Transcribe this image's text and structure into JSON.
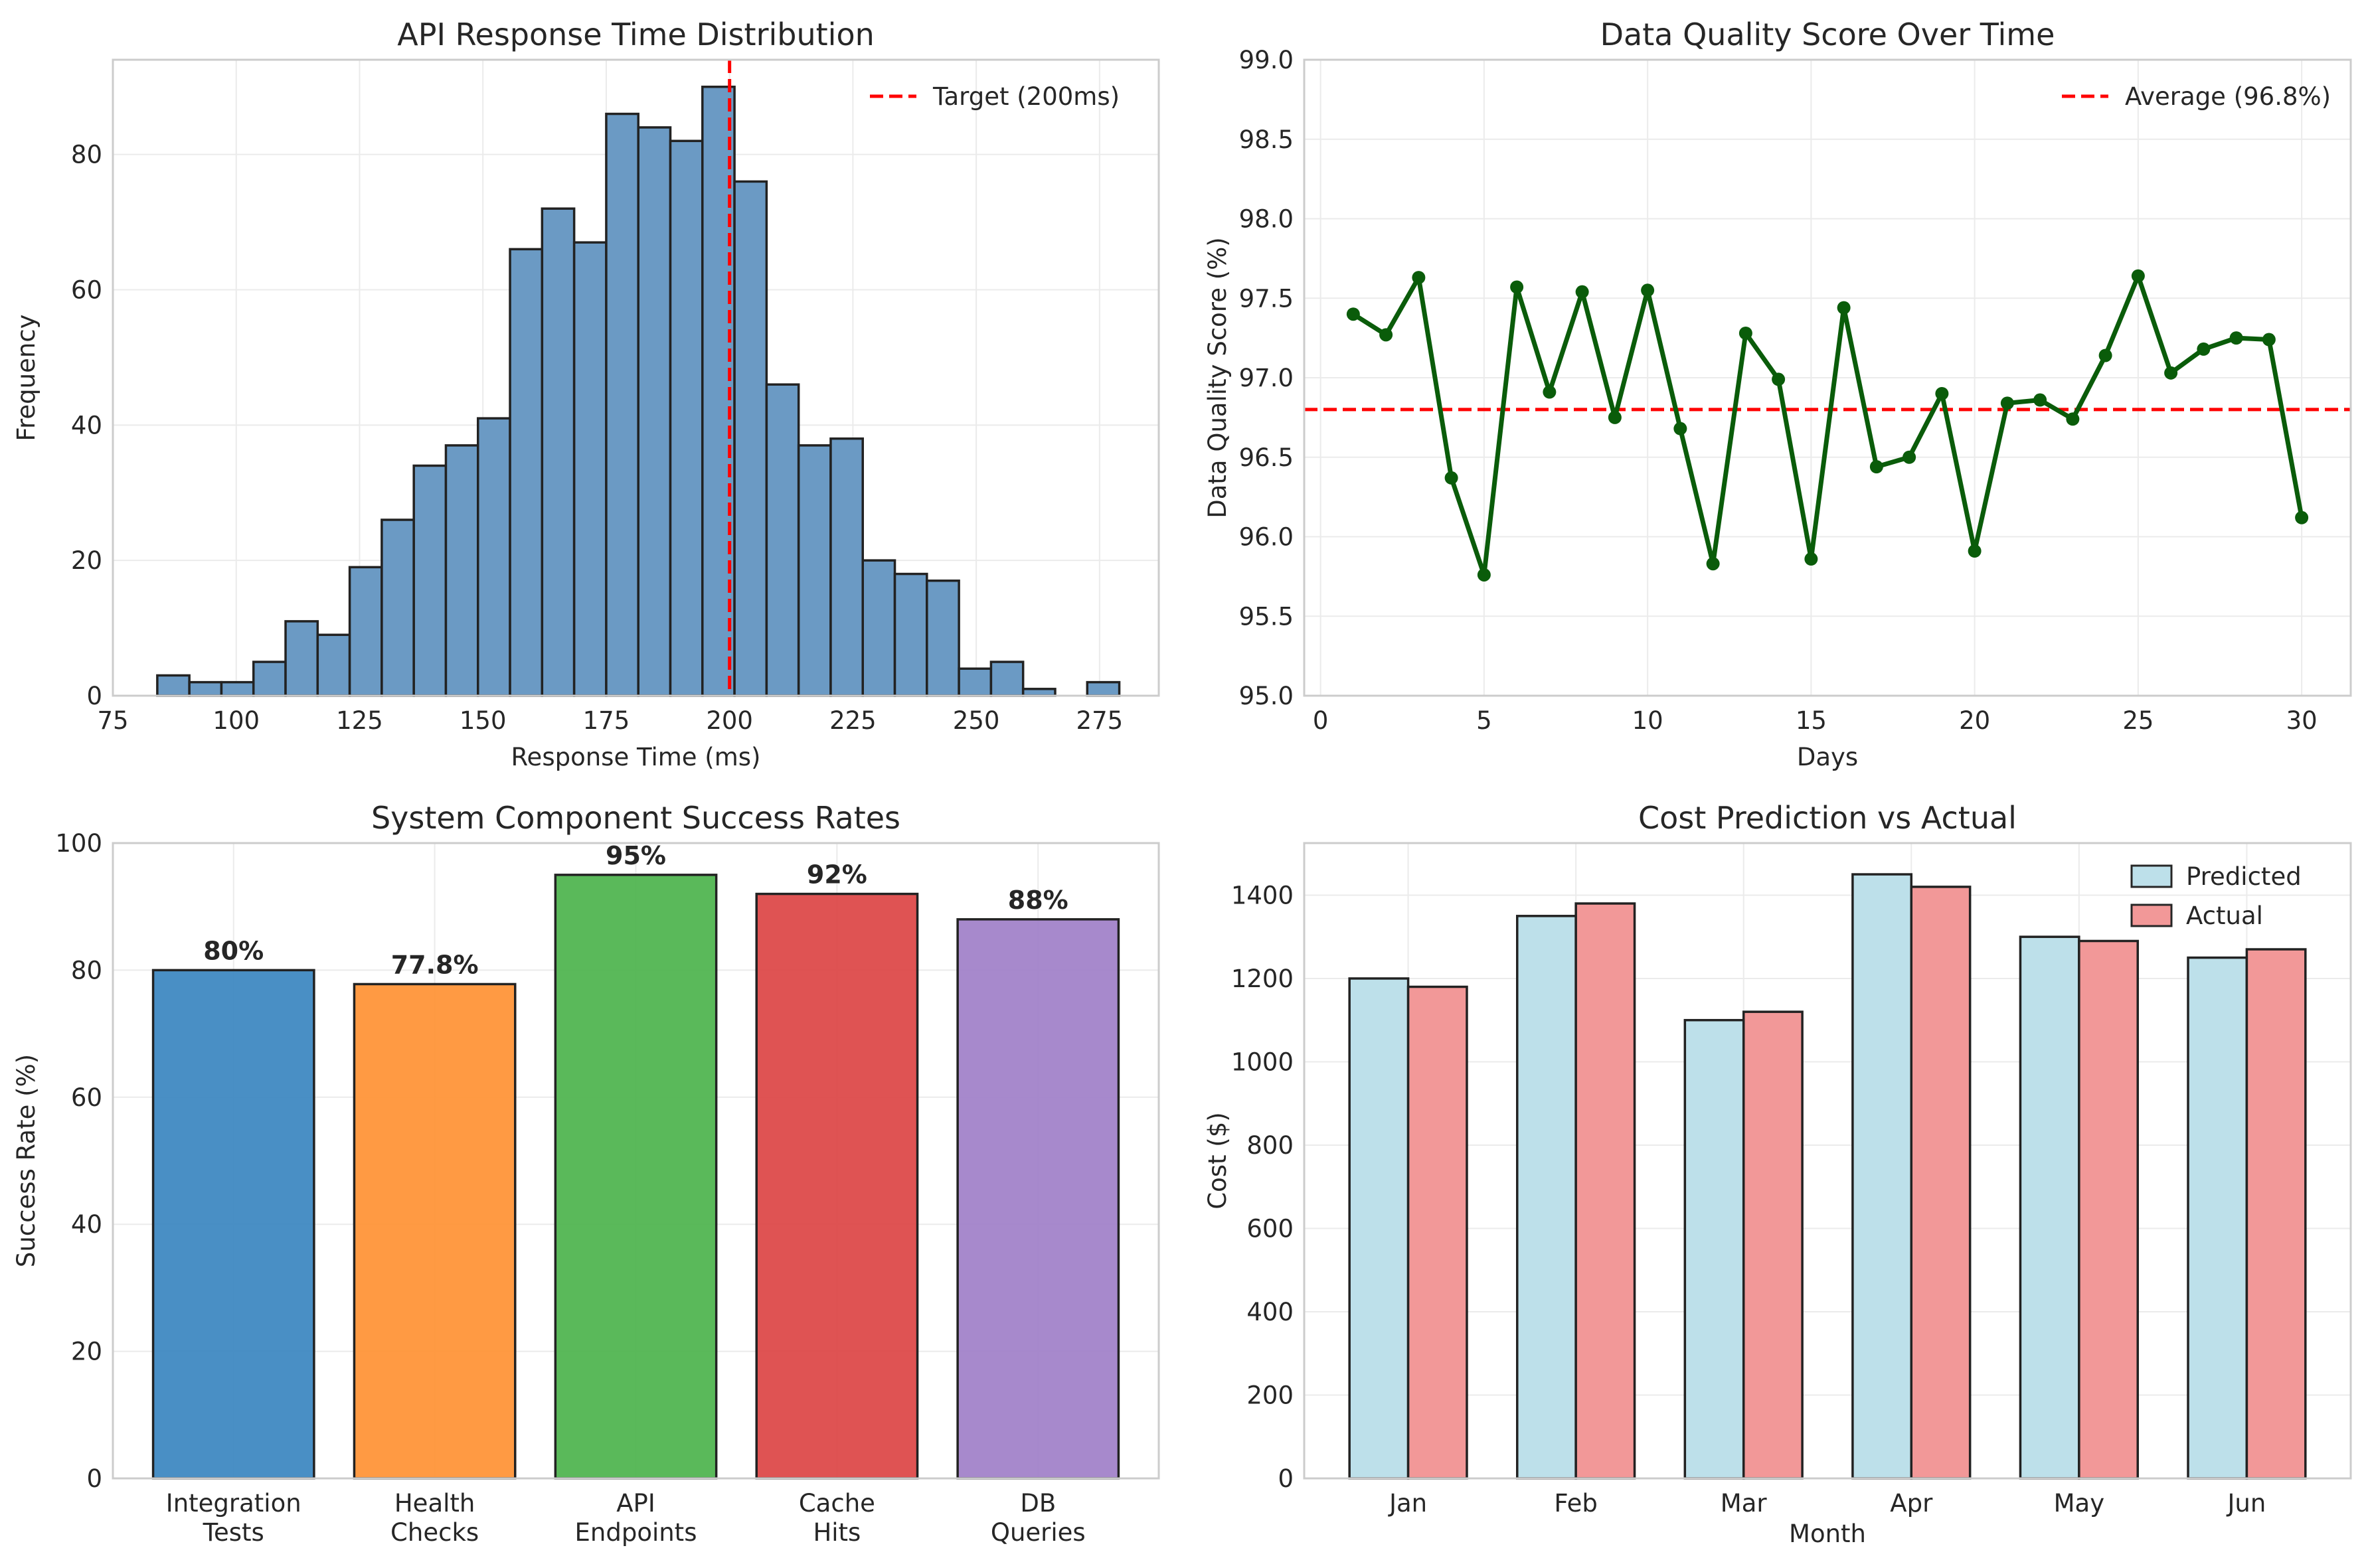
{
  "chart_data": [
    {
      "type": "bar",
      "subtype": "histogram",
      "title": "API Response Time Distribution",
      "xlabel": "Response Time (ms)",
      "ylabel": "Frequency",
      "xlim": [
        75,
        287
      ],
      "ylim": [
        0,
        94
      ],
      "xticks": [
        75,
        100,
        125,
        150,
        175,
        200,
        225,
        250,
        275
      ],
      "yticks": [
        0,
        20,
        40,
        60,
        80
      ],
      "bin_start": 84,
      "bin_width": 6.5,
      "values": [
        3,
        2,
        2,
        5,
        11,
        9,
        19,
        26,
        34,
        37,
        41,
        66,
        72,
        67,
        86,
        84,
        82,
        90,
        76,
        46,
        37,
        38,
        20,
        18,
        17,
        4,
        5,
        1,
        0,
        2
      ],
      "color": "#6b9ac4",
      "reference_line": {
        "x": 200,
        "label": "Target (200ms)",
        "color": "#ff0000"
      },
      "legend_position": "top-right",
      "grid": true
    },
    {
      "type": "line",
      "title": "Data Quality Score Over Time",
      "xlabel": "Days",
      "ylabel": "Data Quality Score (%)",
      "xlim": [
        -0.5,
        31.5
      ],
      "ylim": [
        95.0,
        99.0
      ],
      "xticks": [
        0,
        5,
        10,
        15,
        20,
        25,
        30
      ],
      "yticks": [
        "95.0",
        "95.5",
        "96.0",
        "96.5",
        "97.0",
        "97.5",
        "98.0",
        "98.5",
        "99.0"
      ],
      "x": [
        1,
        2,
        3,
        4,
        5,
        6,
        7,
        8,
        9,
        10,
        11,
        12,
        13,
        14,
        15,
        16,
        17,
        18,
        19,
        20,
        21,
        22,
        23,
        24,
        25,
        26,
        27,
        28,
        29,
        30
      ],
      "values": [
        97.4,
        97.27,
        97.63,
        96.37,
        95.76,
        97.57,
        96.91,
        97.54,
        96.75,
        97.55,
        96.68,
        95.83,
        97.28,
        96.99,
        95.86,
        97.44,
        96.44,
        96.5,
        96.9,
        95.91,
        96.84,
        96.86,
        96.74,
        97.14,
        97.64,
        97.03,
        97.18,
        97.25,
        97.24,
        96.12
      ],
      "color": "#0a5c0a",
      "reference_line": {
        "y": 96.8,
        "label": "Average (96.8%)",
        "color": "#ff0000"
      },
      "legend_position": "top-right",
      "grid": true
    },
    {
      "type": "bar",
      "title": "System Component Success Rates",
      "xlabel": "",
      "ylabel": "Success Rate (%)",
      "ylim": [
        0,
        100
      ],
      "yticks": [
        0,
        20,
        40,
        60,
        80,
        100
      ],
      "categories": [
        [
          "Integration",
          "Tests"
        ],
        [
          "Health",
          "Checks"
        ],
        [
          "API",
          "Endpoints"
        ],
        [
          "Cache",
          "Hits"
        ],
        [
          "DB",
          "Queries"
        ]
      ],
      "values": [
        80,
        77.8,
        95,
        92,
        88
      ],
      "data_labels": [
        "80%",
        "77.8%",
        "95%",
        "92%",
        "88%"
      ],
      "colors": [
        "#3a86c0",
        "#ff9133",
        "#4cb34c",
        "#dc4444",
        "#a07fc8"
      ],
      "grid": true
    },
    {
      "type": "bar",
      "title": "Cost Prediction vs Actual",
      "xlabel": "Month",
      "ylabel": "Cost ($)",
      "ylim": [
        0,
        1525
      ],
      "yticks": [
        0,
        200,
        400,
        600,
        800,
        1000,
        1200,
        1400
      ],
      "categories": [
        "Jan",
        "Feb",
        "Mar",
        "Apr",
        "May",
        "Jun"
      ],
      "series": [
        {
          "name": "Predicted",
          "values": [
            1200,
            1350,
            1100,
            1450,
            1300,
            1250
          ],
          "color": "#bde0ea"
        },
        {
          "name": "Actual",
          "values": [
            1180,
            1380,
            1120,
            1420,
            1290,
            1270
          ],
          "color": "#f29898"
        }
      ],
      "legend_position": "top-right",
      "grid": true
    }
  ]
}
